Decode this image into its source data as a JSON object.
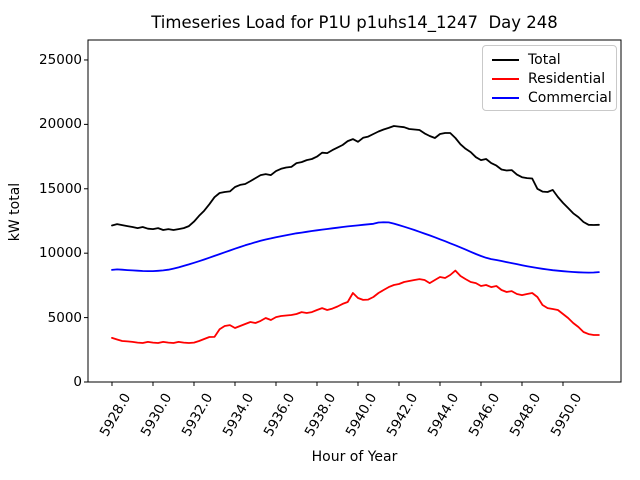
{
  "chart_data": {
    "type": "line",
    "title": "Timeseries Load for P1U p1uhs14_1247  Day 248",
    "xlabel": "Hour of Year",
    "ylabel": "kW total",
    "grid": false,
    "legend_position": "upper right",
    "xlim": [
      5926.83,
      5952.83
    ],
    "ylim": [
      0,
      26550
    ],
    "xticks": [
      5928,
      5930,
      5932,
      5934,
      5936,
      5938,
      5940,
      5942,
      5944,
      5946,
      5948,
      5950
    ],
    "xtick_labels": [
      "5928.0",
      "5930.0",
      "5932.0",
      "5934.0",
      "5936.0",
      "5938.0",
      "5940.0",
      "5942.0",
      "5944.0",
      "5946.0",
      "5948.0",
      "5950.0"
    ],
    "yticks": [
      0,
      5000,
      10000,
      15000,
      20000,
      25000
    ],
    "ytick_labels": [
      "0",
      "5000",
      "10000",
      "15000",
      "20000",
      "25000"
    ],
    "x": [
      5928.0,
      5928.25,
      5928.5,
      5928.75,
      5929.0,
      5929.25,
      5929.5,
      5929.75,
      5930.0,
      5930.25,
      5930.5,
      5930.75,
      5931.0,
      5931.25,
      5931.5,
      5931.75,
      5932.0,
      5932.25,
      5932.5,
      5932.75,
      5933.0,
      5933.25,
      5933.5,
      5933.75,
      5934.0,
      5934.25,
      5934.5,
      5934.75,
      5935.0,
      5935.25,
      5935.5,
      5935.75,
      5936.0,
      5936.25,
      5936.5,
      5936.75,
      5937.0,
      5937.25,
      5937.5,
      5937.75,
      5938.0,
      5938.25,
      5938.5,
      5938.75,
      5939.0,
      5939.25,
      5939.5,
      5939.75,
      5940.0,
      5940.25,
      5940.5,
      5940.75,
      5941.0,
      5941.25,
      5941.5,
      5941.75,
      5942.0,
      5942.25,
      5942.5,
      5942.75,
      5943.0,
      5943.25,
      5943.5,
      5943.75,
      5944.0,
      5944.25,
      5944.5,
      5944.75,
      5945.0,
      5945.25,
      5945.5,
      5945.75,
      5946.0,
      5946.25,
      5946.5,
      5946.75,
      5947.0,
      5947.25,
      5947.5,
      5947.75,
      5948.0,
      5948.25,
      5948.5,
      5948.75,
      5949.0,
      5949.25,
      5949.5,
      5949.75,
      5950.0,
      5950.25,
      5950.5,
      5950.75,
      5951.0,
      5951.25,
      5951.5,
      5951.75
    ],
    "series": [
      {
        "name": "Total",
        "color": "#000000",
        "values": [
          12150,
          12260,
          12180,
          12100,
          12030,
          11950,
          12030,
          11900,
          11870,
          11950,
          11800,
          11870,
          11800,
          11870,
          11950,
          12100,
          12450,
          12900,
          13300,
          13800,
          14350,
          14670,
          14750,
          14800,
          15140,
          15300,
          15370,
          15600,
          15830,
          16060,
          16140,
          16060,
          16370,
          16550,
          16650,
          16700,
          16990,
          17070,
          17230,
          17310,
          17500,
          17800,
          17770,
          18000,
          18200,
          18400,
          18700,
          18860,
          18650,
          18960,
          19050,
          19250,
          19450,
          19600,
          19730,
          19870,
          19830,
          19780,
          19640,
          19600,
          19560,
          19300,
          19100,
          18940,
          19250,
          19330,
          19330,
          18940,
          18450,
          18100,
          17850,
          17450,
          17230,
          17310,
          16990,
          16800,
          16500,
          16420,
          16450,
          16100,
          15900,
          15830,
          15800,
          15000,
          14780,
          14750,
          14910,
          14360,
          13900,
          13510,
          13100,
          12800,
          12420,
          12200,
          12190,
          12200
        ]
      },
      {
        "name": "Residential",
        "color": "#ff0000",
        "values": [
          3420,
          3300,
          3180,
          3150,
          3110,
          3060,
          3030,
          3110,
          3060,
          3030,
          3110,
          3060,
          3030,
          3110,
          3060,
          3030,
          3060,
          3180,
          3340,
          3490,
          3500,
          4100,
          4350,
          4420,
          4190,
          4350,
          4500,
          4660,
          4580,
          4740,
          4970,
          4810,
          5040,
          5120,
          5160,
          5200,
          5280,
          5430,
          5360,
          5430,
          5590,
          5740,
          5590,
          5700,
          5860,
          6060,
          6210,
          6910,
          6520,
          6370,
          6400,
          6600,
          6910,
          7140,
          7370,
          7530,
          7610,
          7760,
          7840,
          7920,
          7990,
          7920,
          7680,
          7920,
          8150,
          8070,
          8310,
          8650,
          8230,
          7990,
          7760,
          7680,
          7450,
          7530,
          7370,
          7450,
          7140,
          6990,
          7060,
          6830,
          6750,
          6830,
          6910,
          6600,
          5980,
          5740,
          5670,
          5590,
          5280,
          4970,
          4580,
          4270,
          3880,
          3720,
          3650,
          3650
        ]
      },
      {
        "name": "Commercial",
        "color": "#0000ff",
        "values": [
          8700,
          8740,
          8720,
          8690,
          8660,
          8640,
          8620,
          8610,
          8610,
          8630,
          8660,
          8720,
          8800,
          8900,
          9010,
          9130,
          9250,
          9380,
          9510,
          9650,
          9790,
          9930,
          10070,
          10210,
          10350,
          10480,
          10610,
          10730,
          10850,
          10960,
          11060,
          11150,
          11240,
          11320,
          11400,
          11470,
          11540,
          11600,
          11660,
          11720,
          11780,
          11830,
          11880,
          11930,
          11980,
          12030,
          12080,
          12120,
          12160,
          12200,
          12240,
          12280,
          12380,
          12400,
          12390,
          12300,
          12180,
          12060,
          11930,
          11800,
          11660,
          11520,
          11380,
          11230,
          11080,
          10930,
          10770,
          10610,
          10450,
          10280,
          10110,
          9940,
          9780,
          9640,
          9540,
          9470,
          9390,
          9310,
          9230,
          9150,
          9070,
          8990,
          8920,
          8850,
          8790,
          8730,
          8680,
          8640,
          8600,
          8570,
          8540,
          8520,
          8500,
          8490,
          8500,
          8530
        ]
      }
    ]
  }
}
